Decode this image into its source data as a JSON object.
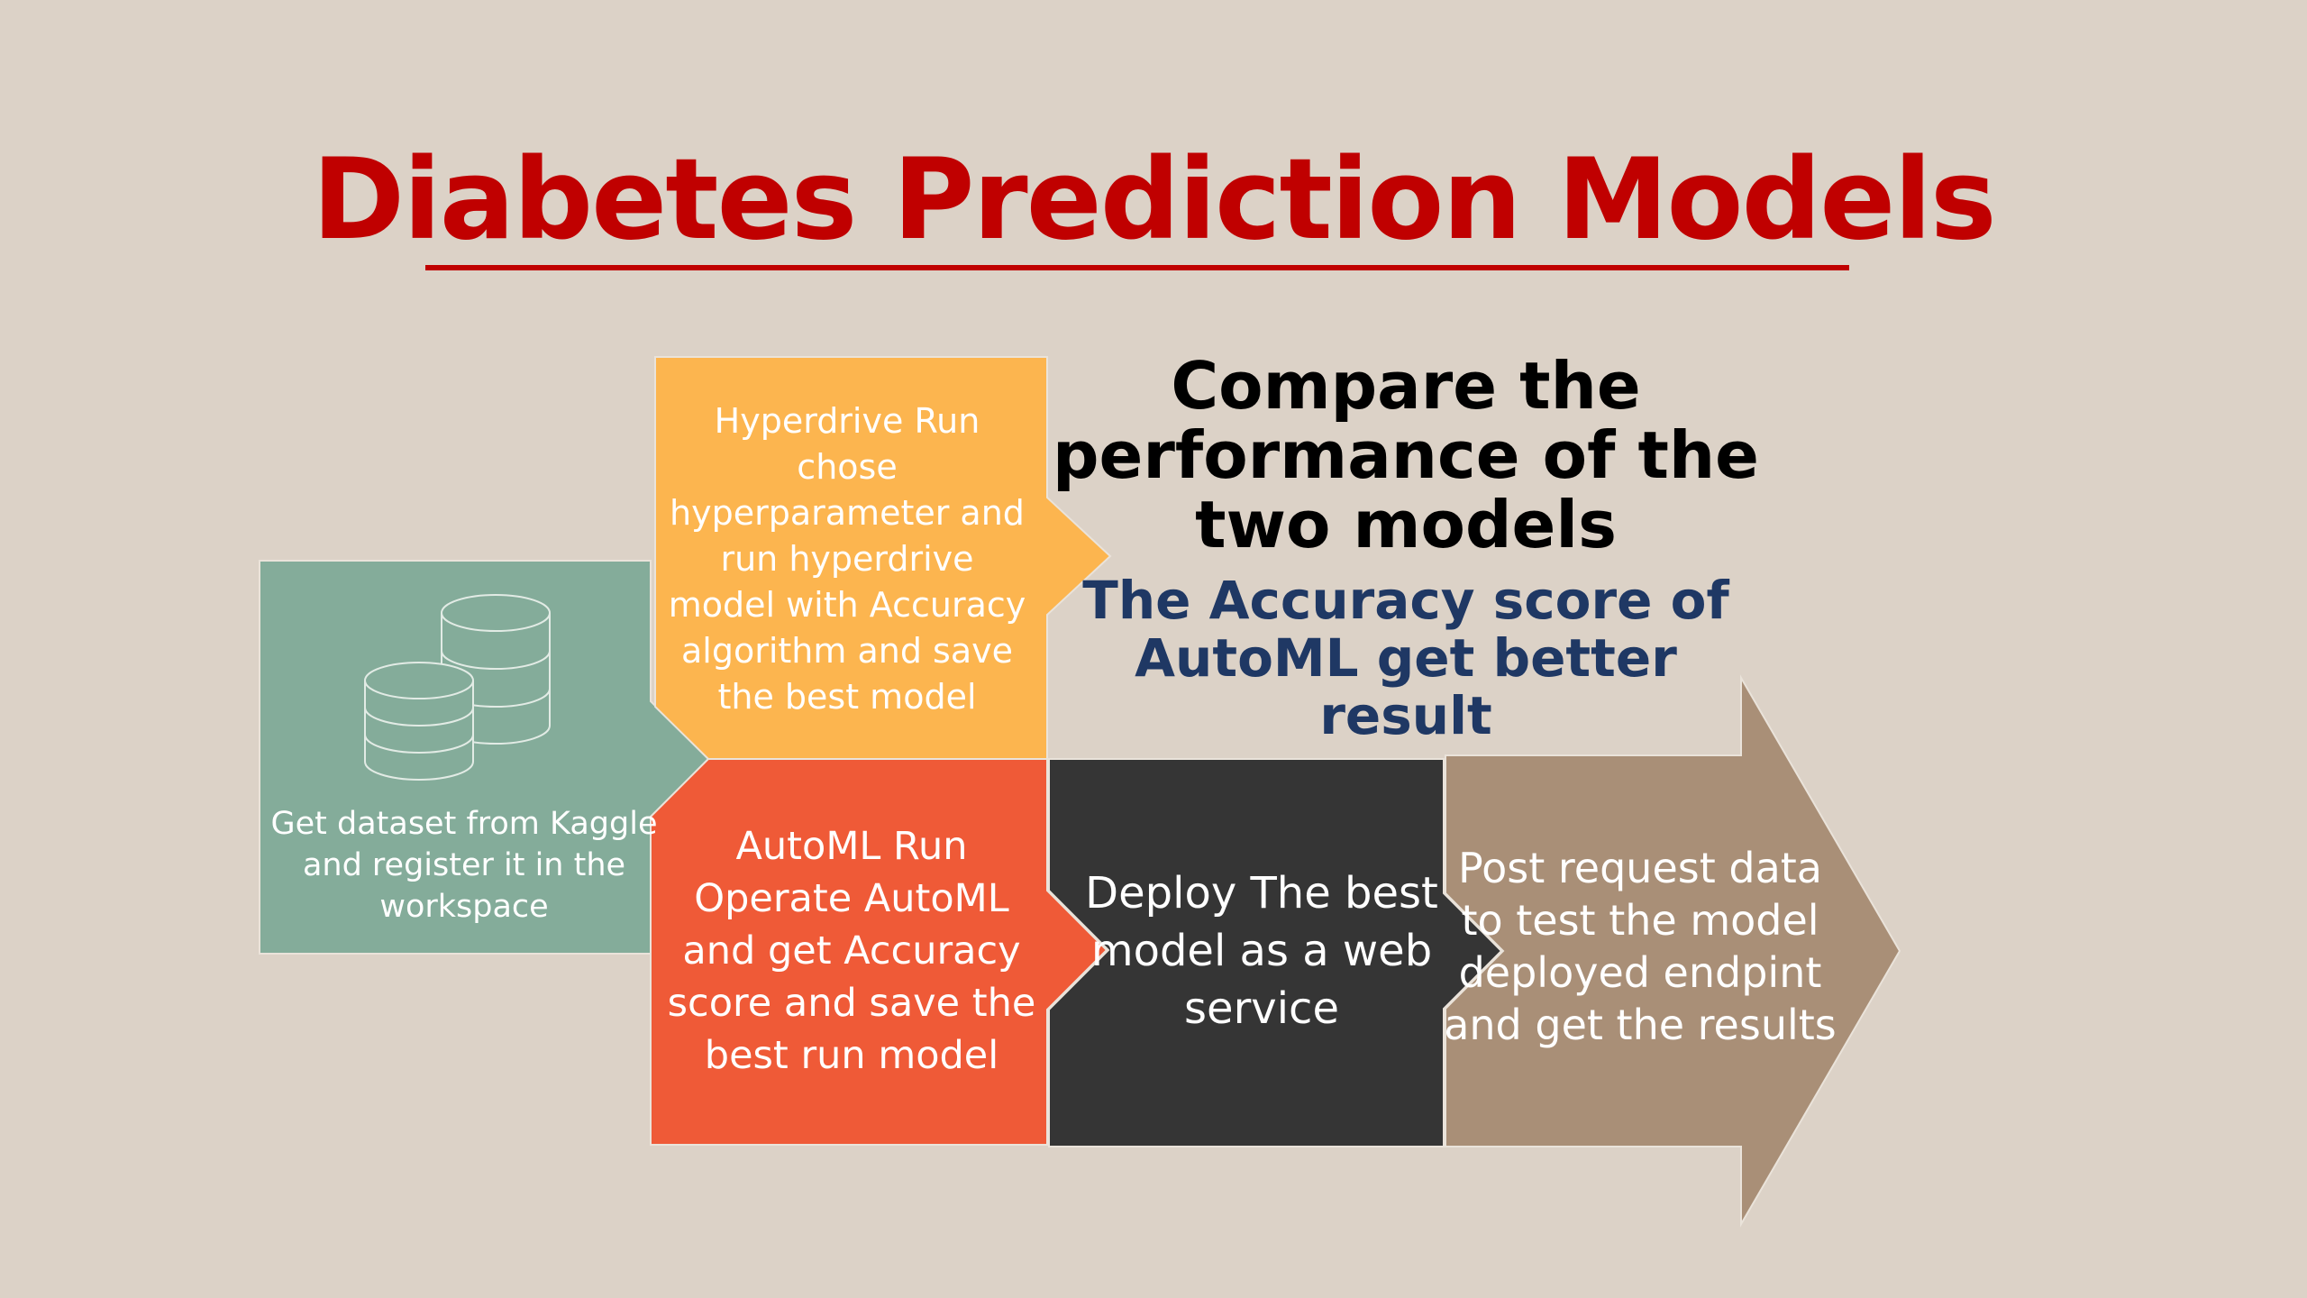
{
  "title": "Diabetes Prediction Models",
  "steps": {
    "dataset": "Get dataset from Kaggle and register it in the workspace",
    "hyperdrive": "Hyperdrive Run chose hyperparameter and run hyperdrive model with Accuracy algorithm and save the best model",
    "automl": "AutoML Run Operate AutoML and get Accuracy score and save the best run model",
    "deploy": "Deploy The best model as a web service",
    "post": "Post request data to test the model deployed endpint and get the results"
  },
  "compare_heading": "Compare the performance of the two models",
  "result_text": "The Accuracy score of AutoML get better result",
  "icons": {
    "dataset": "database-icon"
  },
  "colors": {
    "background": "#dcd2c7",
    "title": "#c00000",
    "dataset": "#84ac9a",
    "hyperdrive": "#fcb54f",
    "automl": "#ef5a37",
    "deploy": "#353535",
    "post": "#a98f77",
    "result": "#1f3864"
  }
}
